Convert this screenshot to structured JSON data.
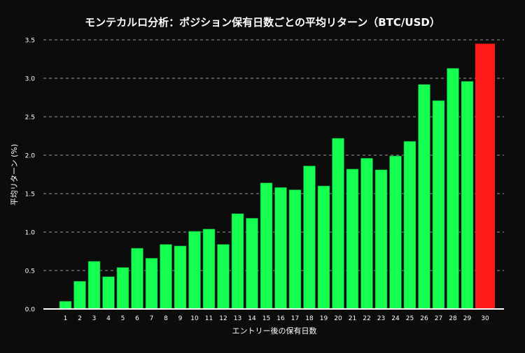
{
  "chart_data": {
    "type": "bar",
    "title": "モンテカルロ分析：ポジション保有日数ごとの平均リターン（BTC/USD）",
    "xlabel": "エントリー後の保有日数",
    "ylabel": "平均リターン (%)",
    "categories": [
      "1",
      "2",
      "3",
      "4",
      "5",
      "6",
      "7",
      "8",
      "9",
      "10",
      "11",
      "12",
      "13",
      "14",
      "15",
      "16",
      "17",
      "18",
      "19",
      "20",
      "21",
      "22",
      "23",
      "24",
      "25",
      "26",
      "27",
      "28",
      "29",
      "30"
    ],
    "values": [
      0.1,
      0.36,
      0.62,
      0.42,
      0.54,
      0.79,
      0.66,
      0.84,
      0.82,
      1.01,
      1.04,
      0.84,
      1.24,
      1.18,
      1.64,
      1.58,
      1.55,
      1.86,
      1.6,
      2.22,
      1.82,
      1.96,
      1.81,
      1.99,
      2.18,
      2.92,
      2.71,
      3.13,
      2.96,
      3.45
    ],
    "highlight_category": "30",
    "ylim": [
      0,
      3.5
    ],
    "yticks": [
      "0.0",
      "0.5",
      "1.0",
      "1.5",
      "2.0",
      "2.5",
      "3.0",
      "3.5"
    ],
    "grid": "horizontal dashed",
    "colors": {
      "bar": "#14ff50",
      "highlight": "#ff1a1a",
      "background": "#0c0c0c",
      "grid": "#9a9a9a"
    }
  }
}
